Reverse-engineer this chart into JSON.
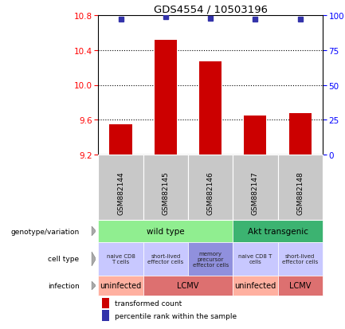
{
  "title": "GDS4554 / 10503196",
  "samples": [
    "GSM882144",
    "GSM882145",
    "GSM882146",
    "GSM882147",
    "GSM882148"
  ],
  "bar_values": [
    9.55,
    10.52,
    10.27,
    9.65,
    9.68
  ],
  "percentile_values": [
    97,
    99,
    98,
    97,
    97
  ],
  "ylim_left": [
    9.2,
    10.8
  ],
  "ylim_right": [
    0,
    100
  ],
  "yticks_left": [
    9.2,
    9.6,
    10.0,
    10.4,
    10.8
  ],
  "yticks_right": [
    0,
    25,
    50,
    75,
    100
  ],
  "bar_color": "#cc0000",
  "dot_color": "#3333aa",
  "bar_width": 0.5,
  "genotype_row": {
    "label": "genotype/variation",
    "groups": [
      {
        "text": "wild type",
        "cols": [
          0,
          1,
          2
        ],
        "color": "#90ee90"
      },
      {
        "text": "Akt transgenic",
        "cols": [
          3,
          4
        ],
        "color": "#3cb371"
      }
    ]
  },
  "celltype_row": {
    "label": "cell type",
    "cells": [
      {
        "text": "naive CD8\nT cells",
        "col": 0,
        "color": "#c8c8ff"
      },
      {
        "text": "short-lived\neffector cells",
        "col": 1,
        "color": "#c8c8ff"
      },
      {
        "text": "memory\nprecursor\neffector cells",
        "col": 2,
        "color": "#9090dd"
      },
      {
        "text": "naive CD8 T\ncells",
        "col": 3,
        "color": "#c8c8ff"
      },
      {
        "text": "short-lived\neffector cells",
        "col": 4,
        "color": "#c8c8ff"
      }
    ]
  },
  "infection_row": {
    "label": "infection",
    "groups": [
      {
        "text": "uninfected",
        "cols": [
          0
        ],
        "color": "#ffb0a0"
      },
      {
        "text": "LCMV",
        "cols": [
          1,
          2
        ],
        "color": "#dd7070"
      },
      {
        "text": "uninfected",
        "cols": [
          3
        ],
        "color": "#ffb0a0"
      },
      {
        "text": "LCMV",
        "cols": [
          4
        ],
        "color": "#dd7070"
      }
    ]
  },
  "legend_items": [
    {
      "color": "#cc0000",
      "label": "transformed count"
    },
    {
      "color": "#3333aa",
      "label": "percentile rank within the sample"
    }
  ],
  "sample_box_color": "#c8c8c8",
  "grid_color": "black",
  "grid_linestyle": ":",
  "grid_linewidth": 0.8
}
